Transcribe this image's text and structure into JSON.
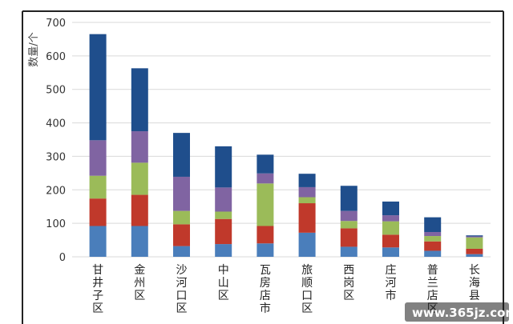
{
  "chart_data": {
    "type": "bar",
    "stacked": true,
    "title": "",
    "ylabel": "数量/个",
    "xlabel": "",
    "ylim": [
      0,
      700
    ],
    "yticks": [
      0,
      100,
      200,
      300,
      400,
      500,
      600,
      700
    ],
    "grid": true,
    "categories": [
      "甘井子区",
      "金州区",
      "沙河口区",
      "中山区",
      "瓦房店市",
      "旅顺口区",
      "西岗区",
      "庄河市",
      "普兰店区",
      "长海县"
    ],
    "series": [
      {
        "color": "#4a7ebb",
        "values": [
          92,
          92,
          32,
          38,
          40,
          72,
          30,
          28,
          18,
          8
        ]
      },
      {
        "color": "#c0392b",
        "values": [
          82,
          93,
          65,
          75,
          52,
          88,
          55,
          38,
          28,
          16
        ]
      },
      {
        "color": "#9bbb59",
        "values": [
          68,
          96,
          40,
          22,
          127,
          18,
          22,
          40,
          16,
          34
        ]
      },
      {
        "color": "#8064a2",
        "values": [
          106,
          94,
          102,
          72,
          30,
          30,
          30,
          18,
          12,
          3
        ]
      },
      {
        "color": "#1f4e8c",
        "values": [
          317,
          188,
          131,
          123,
          56,
          40,
          75,
          41,
          44,
          3
        ]
      }
    ]
  },
  "watermark": "www.365jz.com"
}
